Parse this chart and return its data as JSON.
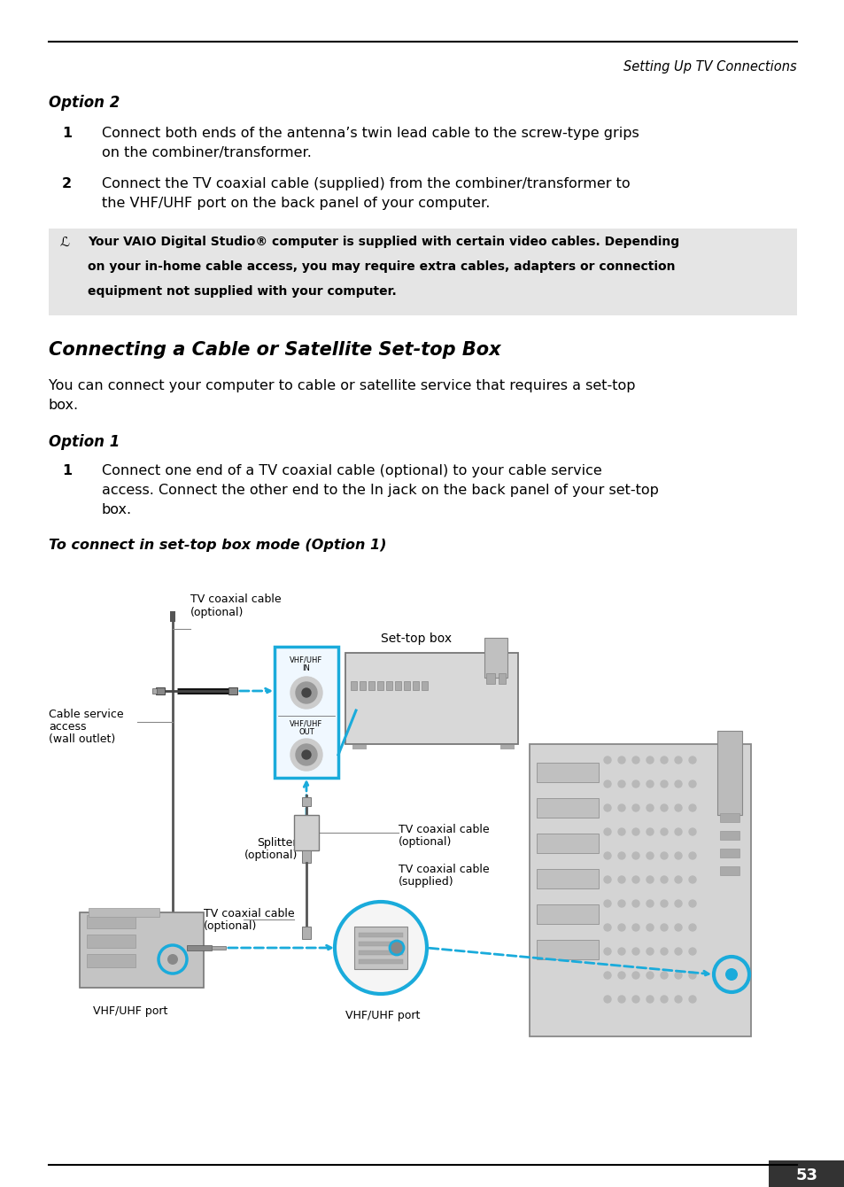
{
  "page_title": "Setting Up TV Connections",
  "option2_heading": "Option 2",
  "option2_item1_num": "1",
  "option2_item1_line1": "Connect both ends of the antenna’s twin lead cable to the screw-type grips",
  "option2_item1_line2": "on the combiner/transformer.",
  "option2_item2_num": "2",
  "option2_item2_line1": "Connect the TV coaxial cable (supplied) from the combiner/transformer to",
  "option2_item2_line2": "the VHF/UHF port on the back panel of your computer.",
  "note_line1": "Your VAIO Digital Studio® computer is supplied with certain video cables. Depending",
  "note_line2": "on your in-home cable access, you may require extra cables, adapters or connection",
  "note_line3": "equipment not supplied with your computer.",
  "section_heading": "Connecting a Cable or Satellite Set-top Box",
  "section_intro_line1": "You can connect your computer to cable or satellite service that requires a set-top",
  "section_intro_line2": "box.",
  "option1_heading": "Option 1",
  "option1_item1_num": "1",
  "option1_item1_line1": "Connect one end of a TV coaxial cable (optional) to your cable service",
  "option1_item1_line2": "access. Connect the other end to the In jack on the back panel of your set-top",
  "option1_item1_line3": "box.",
  "diagram_heading": "To connect in set-top box mode (Option 1)",
  "label_tv_coax_top": "TV coaxial cable",
  "label_tv_coax_top2": "(optional)",
  "label_set_top_box": "Set-top box",
  "label_cable_svc_1": "Cable service",
  "label_cable_svc_2": "access",
  "label_cable_svc_3": "(wall outlet)",
  "label_vhf_in": "VHF/UHF",
  "label_vhf_in2": "IN",
  "label_vhf_out": "VHF/UHF",
  "label_vhf_out2": "OUT",
  "label_splitter_1": "Splitter",
  "label_splitter_2": "(optional)",
  "label_tv_coax_mid_1": "TV coaxial cable",
  "label_tv_coax_mid_2": "(optional)",
  "label_tv_coax_sup_1": "TV coaxial cable",
  "label_tv_coax_sup_2": "(supplied)",
  "label_tv_coax_bot_1": "TV coaxial cable",
  "label_tv_coax_bot_2": "(optional)",
  "label_vhf_port_left": "VHF/UHF port",
  "label_vhf_port_right": "VHF/UHF port",
  "page_number": "53",
  "bg_color": "#ffffff",
  "note_bg": "#e5e5e5",
  "blue": "#1aabdb",
  "dark": "#000000",
  "gray": "#888888",
  "midgray": "#999999",
  "lightgray": "#cccccc",
  "darkgray": "#555555",
  "devgray": "#d0d0d0"
}
